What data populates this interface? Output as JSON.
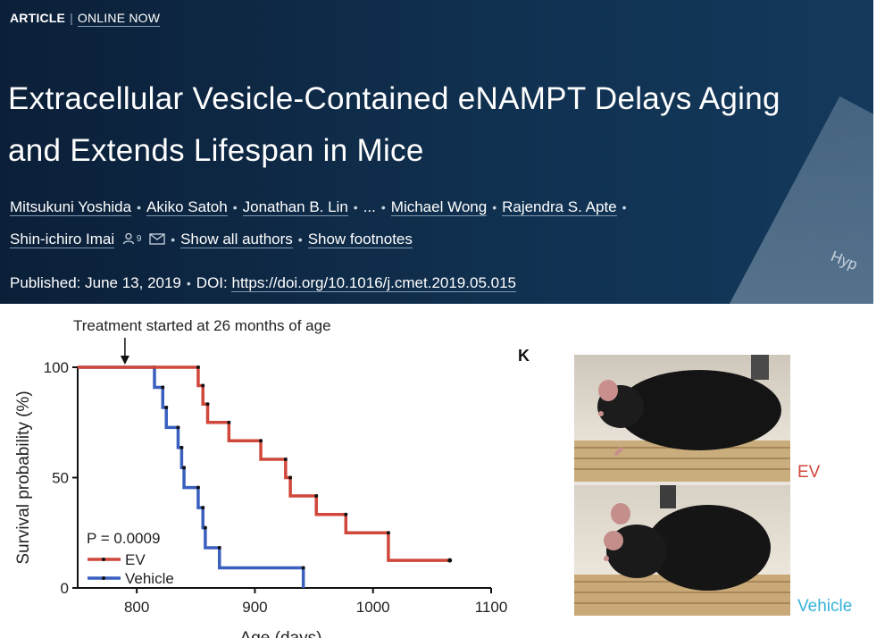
{
  "header": {
    "kicker_article": "ARTICLE",
    "kicker_separator": "|",
    "kicker_status": "ONLINE NOW",
    "title_line1": "Extracellular Vesicle-Contained eNAMPT Delays Aging",
    "title_line2": "and Extends Lifespan in Mice",
    "authors": [
      "Mitsukuni Yoshida",
      "Akiko Satoh",
      "Jonathan B. Lin",
      "...",
      "Michael Wong",
      "Rajendra S. Apte",
      "Shin-ichiro Imai"
    ],
    "show_all_authors": "Show all authors",
    "show_footnotes": "Show footnotes",
    "published_label": "Published:",
    "published_date": "June 13, 2019",
    "doi_label": "DOI:",
    "doi_link": "https://doi.org/10.1016/j.cmet.2019.05.015",
    "corner_text": "Hyp",
    "orcid_mark": "9",
    "icons": [
      "person-icon",
      "email-icon"
    ]
  },
  "figure": {
    "panel_label": "K",
    "photo_labels": {
      "top": "EV",
      "bottom": "Vehicle"
    },
    "colors": {
      "ev": "#d0473b",
      "vehicle": "#3a5fbf",
      "vehicle_label": "#35b3d8"
    }
  },
  "chart_data": {
    "type": "line",
    "subtype": "kaplan-meier-step",
    "annotation": "Treatment started at 26 months of age",
    "annotation_x": 790,
    "pvalue": "P = 0.0009",
    "xlabel": "Age (days)",
    "ylabel": "Survival probability (%)",
    "xlim": [
      750,
      1100
    ],
    "ylim": [
      0,
      100
    ],
    "xticks": [
      800,
      900,
      1000,
      1100
    ],
    "yticks": [
      0,
      50,
      100
    ],
    "legend_placement": "bottom-left",
    "series": [
      {
        "name": "EV",
        "color": "#d0473b",
        "steps": [
          [
            750,
            100
          ],
          [
            852,
            91.7
          ],
          [
            856,
            83.3
          ],
          [
            860,
            75
          ],
          [
            878,
            66.7
          ],
          [
            905,
            58.3
          ],
          [
            926,
            50
          ],
          [
            930,
            41.7
          ],
          [
            952,
            33.3
          ],
          [
            977,
            25
          ],
          [
            1013,
            12.5
          ],
          [
            1065,
            12.5
          ]
        ],
        "censored": [
          [
            1065,
            12.5
          ]
        ]
      },
      {
        "name": "Vehicle",
        "color": "#3a5fbf",
        "steps": [
          [
            750,
            100
          ],
          [
            813,
            100
          ],
          [
            815,
            90.9
          ],
          [
            822,
            81.8
          ],
          [
            825,
            72.7
          ],
          [
            835,
            63.6
          ],
          [
            838,
            54.5
          ],
          [
            840,
            45.5
          ],
          [
            852,
            36.4
          ],
          [
            856,
            27.3
          ],
          [
            858,
            18.2
          ],
          [
            870,
            9.1
          ],
          [
            941,
            0
          ]
        ],
        "censored": []
      }
    ]
  }
}
